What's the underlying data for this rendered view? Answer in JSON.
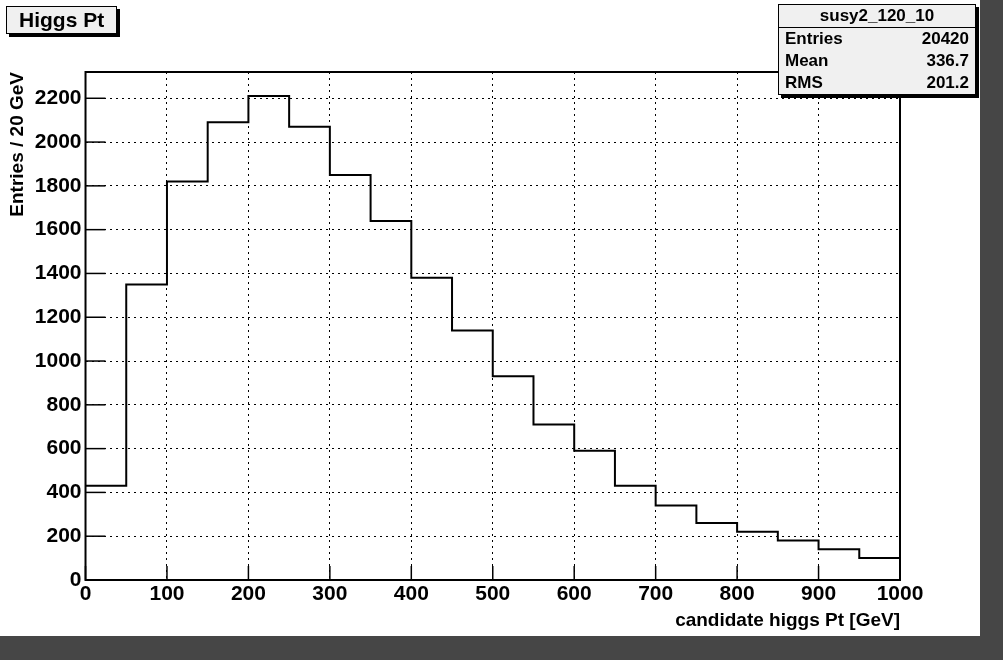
{
  "chart_data": {
    "type": "histogram",
    "title": "Higgs Pt",
    "xlabel": "candidate higgs Pt [GeV]",
    "ylabel": "Entries / 20 GeV",
    "bins": [
      0,
      50,
      100,
      150,
      200,
      250,
      300,
      350,
      400,
      450,
      500,
      550,
      600,
      650,
      700,
      750,
      800,
      850,
      900,
      950,
      1000
    ],
    "values": [
      430,
      1350,
      1820,
      2090,
      2210,
      2070,
      1850,
      1640,
      1380,
      1140,
      930,
      710,
      590,
      430,
      340,
      260,
      220,
      180,
      140,
      100
    ],
    "color": "#000000",
    "xlim": [
      0,
      1000
    ],
    "xticks": [
      0,
      100,
      200,
      300,
      400,
      500,
      600,
      700,
      800,
      900,
      1000
    ],
    "ylim": [
      0,
      2320
    ],
    "yticks": [
      0,
      200,
      400,
      600,
      800,
      1000,
      1200,
      1400,
      1600,
      1800,
      2000,
      2200
    ],
    "grid": true,
    "annotations": [
      "susy2_120_10",
      "Entries",
      "20420",
      "Mean",
      "336.7",
      "RMS",
      "201.2"
    ]
  }
}
